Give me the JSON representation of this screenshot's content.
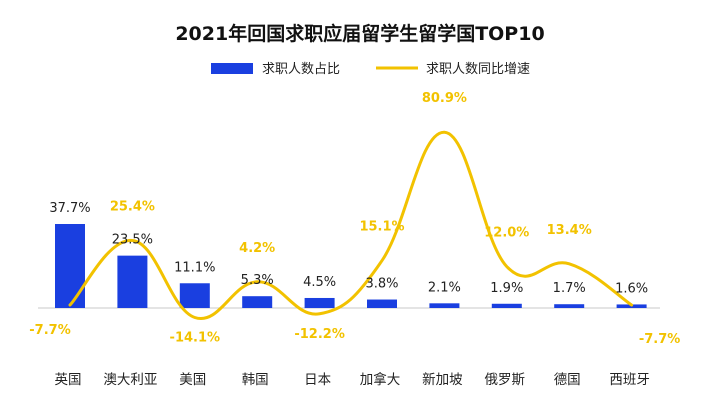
{
  "chart_data": {
    "type": "bar",
    "title": "2021年回国求职应届留学生留学国TOP10",
    "categories": [
      "英国",
      "澳大利亚",
      "美国",
      "韩国",
      "日本",
      "加拿大",
      "新加坡",
      "俄罗斯",
      "德国",
      "西班牙"
    ],
    "series": [
      {
        "name": "求职人数占比",
        "type": "bar",
        "values": [
          37.7,
          23.5,
          11.1,
          5.3,
          4.5,
          3.8,
          2.1,
          1.9,
          1.7,
          1.6
        ],
        "labels": [
          "37.7%",
          "23.5%",
          "11.1%",
          "5.3%",
          "4.5%",
          "3.8%",
          "2.1%",
          "1.9%",
          "1.7%",
          "1.6%"
        ],
        "color": "#1a3fe0"
      },
      {
        "name": "求职人数同比增速",
        "type": "line",
        "smooth": true,
        "values": [
          -7.7,
          25.4,
          -14.1,
          4.2,
          -12.2,
          15.1,
          80.9,
          12.0,
          13.4,
          -7.7
        ],
        "labels": [
          "-7.7%",
          "25.4%",
          "-14.1%",
          "4.2%",
          "-12.2%",
          "15.1%",
          "80.9%",
          "12.0%",
          "13.4%",
          "-7.7%"
        ],
        "color": "#f2c200"
      }
    ],
    "legend": "top-center",
    "grid": false
  }
}
